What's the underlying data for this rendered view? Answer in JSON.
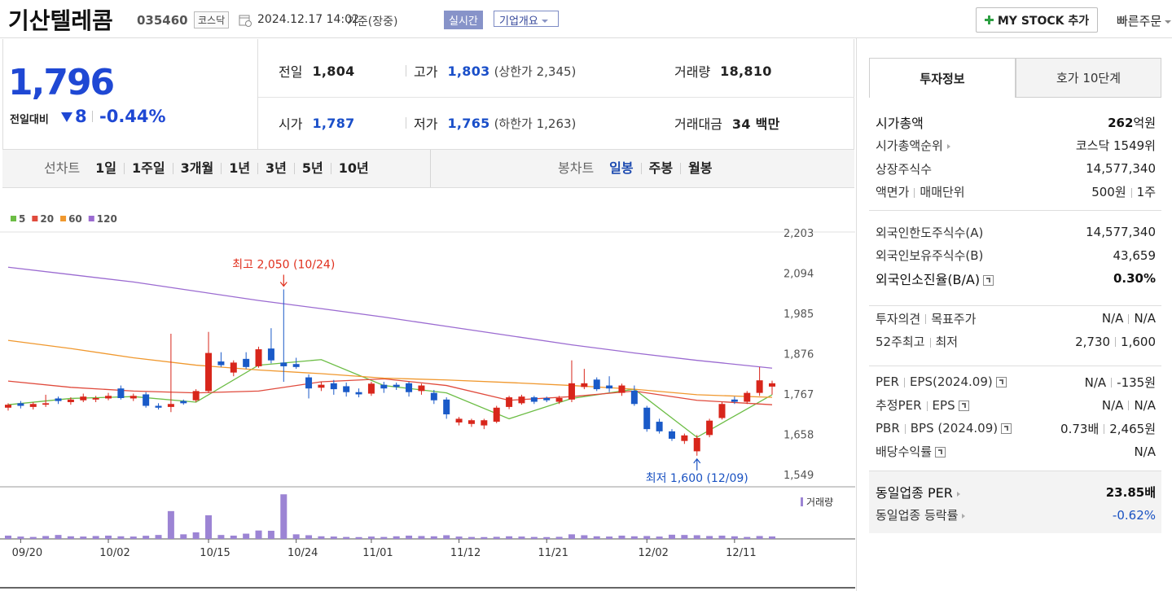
{
  "header": {
    "name": "기산텔레콤",
    "code": "035460",
    "market": "코스닥",
    "datetime": "2024.12.17 14:02",
    "basis": "기준(장중)",
    "realtime": "실시간",
    "overview": "기업개요",
    "mystock": "MY STOCK 추가",
    "quick_order": "빠른주문"
  },
  "quote": {
    "price": "1,796",
    "change_label": "전일대비",
    "change": "8",
    "change_rate": "-0.44%",
    "cells": [
      {
        "label": "전일",
        "value": "1,804"
      },
      {
        "label": "고가",
        "value": "1,803",
        "note": "(상한가 2,345)",
        "color": "#1a4fc9"
      },
      {
        "label": "거래량",
        "value": "18,810"
      },
      {
        "label": "시가",
        "value": "1,787",
        "color": "#1a4fc9"
      },
      {
        "label": "저가",
        "value": "1,765",
        "note": "(하한가 1,263)",
        "color": "#1a4fc9"
      },
      {
        "label": "거래대금",
        "value": "34 백만"
      }
    ]
  },
  "period_tabs": {
    "line_label": "선차트",
    "line": [
      "1일",
      "1주일",
      "3개월",
      "1년",
      "3년",
      "5년",
      "10년"
    ],
    "candle_label": "봉차트",
    "candle": [
      "일봉",
      "주봉",
      "월봉"
    ],
    "active": 0
  },
  "chart_data": {
    "type": "candlestick",
    "categories": [
      null,
      "09/20",
      null,
      null,
      null,
      null,
      null,
      null,
      "10/02",
      null,
      null,
      null,
      null,
      null,
      null,
      null,
      "10/15",
      null,
      null,
      null,
      null,
      null,
      null,
      "10/24",
      null,
      null,
      null,
      null,
      null,
      "11/01",
      null,
      null,
      null,
      null,
      null,
      null,
      "11/12",
      null,
      null,
      null,
      null,
      null,
      null,
      "11/21",
      null,
      null,
      null,
      null,
      null,
      null,
      null,
      "12/02",
      null,
      null,
      null,
      null,
      null,
      null,
      "12/11",
      null,
      null,
      null
    ],
    "open": [
      1730,
      1742,
      1732,
      1738,
      1755,
      1745,
      1750,
      1752,
      1755,
      1782,
      1755,
      1766,
      1735,
      1732,
      1748,
      1750,
      1775,
      1855,
      1825,
      1862,
      1842,
      1890,
      1852,
      1848,
      1812,
      1784,
      1796,
      1788,
      1772,
      1768,
      1792,
      1792,
      1796,
      1775,
      1770,
      1752,
      1690,
      1686,
      1682,
      1692,
      1732,
      1742,
      1758,
      1756,
      1746,
      1752,
      1786,
      1806,
      1790,
      1770,
      1776,
      1730,
      1692,
      1666,
      1640,
      1612,
      1656,
      1702,
      1752,
      1746,
      1770,
      1787
    ],
    "high": [
      1742,
      1748,
      1745,
      1765,
      1760,
      1758,
      1768,
      1762,
      1770,
      1790,
      1768,
      1772,
      1742,
      1930,
      1752,
      1780,
      1935,
      1880,
      1858,
      1880,
      1895,
      1945,
      2050,
      1865,
      1820,
      1800,
      1805,
      1798,
      1782,
      1800,
      1800,
      1798,
      1800,
      1795,
      1778,
      1758,
      1705,
      1700,
      1700,
      1735,
      1762,
      1765,
      1762,
      1760,
      1762,
      1858,
      1835,
      1812,
      1815,
      1795,
      1790,
      1735,
      1700,
      1672,
      1660,
      1656,
      1700,
      1745,
      1760,
      1775,
      1840,
      1803
    ],
    "low": [
      1722,
      1728,
      1725,
      1732,
      1740,
      1738,
      1745,
      1745,
      1750,
      1752,
      1748,
      1730,
      1725,
      1718,
      1738,
      1745,
      1770,
      1840,
      1815,
      1835,
      1838,
      1850,
      1800,
      1835,
      1755,
      1775,
      1765,
      1760,
      1758,
      1762,
      1770,
      1778,
      1760,
      1765,
      1740,
      1700,
      1682,
      1678,
      1672,
      1688,
      1726,
      1738,
      1740,
      1745,
      1740,
      1745,
      1780,
      1775,
      1772,
      1762,
      1735,
      1665,
      1660,
      1640,
      1632,
      1600,
      1650,
      1698,
      1740,
      1740,
      1762,
      1765
    ],
    "close": [
      1738,
      1735,
      1740,
      1742,
      1748,
      1752,
      1760,
      1756,
      1762,
      1756,
      1762,
      1735,
      1730,
      1740,
      1742,
      1775,
      1878,
      1845,
      1852,
      1840,
      1888,
      1858,
      1842,
      1840,
      1782,
      1792,
      1780,
      1772,
      1766,
      1795,
      1782,
      1786,
      1772,
      1790,
      1750,
      1712,
      1700,
      1696,
      1696,
      1730,
      1758,
      1760,
      1746,
      1750,
      1756,
      1796,
      1796,
      1780,
      1782,
      1790,
      1740,
      1672,
      1666,
      1646,
      1655,
      1648,
      1695,
      1740,
      1746,
      1770,
      1804,
      1796
    ],
    "up_color": "#d8261b",
    "down_color": "#1a5ac8",
    "series": [
      {
        "name": "5",
        "color": "#6cbd45",
        "x": [
          0,
          5,
          10,
          15,
          20,
          25,
          30,
          35,
          40,
          45,
          50,
          55,
          61
        ],
        "values": [
          1738,
          1755,
          1760,
          1745,
          1845,
          1860,
          1790,
          1770,
          1700,
          1755,
          1780,
          1650,
          1765
        ]
      },
      {
        "name": "20",
        "color": "#e04a3c",
        "x": [
          0,
          5,
          10,
          15,
          20,
          25,
          30,
          35,
          40,
          45,
          50,
          55,
          61
        ],
        "values": [
          1802,
          1785,
          1775,
          1770,
          1775,
          1800,
          1808,
          1790,
          1750,
          1760,
          1775,
          1750,
          1738
        ]
      },
      {
        "name": "60",
        "color": "#f0982e",
        "x": [
          0,
          5,
          10,
          15,
          20,
          25,
          30,
          35,
          40,
          45,
          50,
          55,
          61
        ],
        "values": [
          1912,
          1890,
          1865,
          1845,
          1832,
          1822,
          1810,
          1805,
          1798,
          1790,
          1780,
          1765,
          1758
        ]
      },
      {
        "name": "120",
        "color": "#9b6bd1",
        "x": [
          0,
          5,
          10,
          15,
          20,
          25,
          30,
          35,
          40,
          45,
          50,
          55,
          61
        ],
        "values": [
          2110,
          2090,
          2070,
          2045,
          2020,
          1998,
          1975,
          1950,
          1925,
          1900,
          1878,
          1858,
          1837
        ]
      }
    ],
    "ylim": [
      1549,
      2203
    ],
    "yticks": [
      {
        "value": 2203,
        "label": "2,203"
      },
      {
        "value": 2094,
        "label": "2,094"
      },
      {
        "value": 1985,
        "label": "1,985"
      },
      {
        "value": 1876,
        "label": "1,876"
      },
      {
        "value": 1767,
        "label": "1,767"
      },
      {
        "value": 1658,
        "label": "1,658"
      },
      {
        "value": 1549,
        "label": "1,549"
      }
    ],
    "grid": false,
    "annotations": [
      {
        "kind": "high",
        "text": "최고 2,050 (10/24)",
        "color": "#e0301e"
      },
      {
        "kind": "low",
        "text": "최저 1,600 (12/09)",
        "color": "#1a52c2"
      }
    ],
    "volume_label": "거래량",
    "volume_color": "#9c84d4",
    "volume": [
      25000,
      18000,
      15000,
      22000,
      30000,
      20000,
      18000,
      22000,
      25000,
      20000,
      18000,
      24000,
      30000,
      212000,
      35000,
      50000,
      180000,
      30000,
      25000,
      40000,
      64000,
      62000,
      340000,
      35000,
      28000,
      20000,
      18000,
      15000,
      14000,
      18000,
      15000,
      20000,
      25000,
      22000,
      20000,
      28000,
      18000,
      15000,
      14000,
      16000,
      20000,
      18000,
      15000,
      14000,
      16000,
      35000,
      28000,
      20000,
      18000,
      25000,
      20000,
      22000,
      18000,
      32000,
      30000,
      28000,
      22000,
      25000,
      20000,
      15000,
      22000,
      18810
    ],
    "vlim": [
      0,
      360000
    ]
  },
  "info": {
    "tabs": [
      "투자정보",
      "호가 10단계"
    ],
    "sections": [
      [
        {
          "labels": [
            "시가총액"
          ],
          "values": [
            "262"
          ],
          "unit": "억원",
          "strong": true,
          "label_strong": true
        },
        {
          "labels": [
            "시가총액순위"
          ],
          "arrow": true,
          "values": [
            "코스닥 1549위"
          ]
        },
        {
          "labels": [
            "상장주식수"
          ],
          "values": [
            "14,577,340"
          ]
        },
        {
          "labels": [
            "액면가",
            "매매단위"
          ],
          "values": [
            "500원",
            "1주"
          ]
        }
      ],
      [
        {
          "labels": [
            "외국인한도주식수(A)"
          ],
          "values": [
            "14,577,340"
          ]
        },
        {
          "labels": [
            "외국인보유주식수(B)"
          ],
          "values": [
            "43,659"
          ]
        },
        {
          "labels": [
            "외국인소진율(B/A)"
          ],
          "help": true,
          "values": [
            "0.30%"
          ],
          "strong": true,
          "label_strong": true
        }
      ],
      [
        {
          "labels": [
            "투자의견",
            "목표주가"
          ],
          "values": [
            "N/A",
            "N/A"
          ]
        },
        {
          "labels": [
            "52주최고",
            "최저"
          ],
          "values": [
            "2,730",
            "1,600"
          ]
        }
      ],
      [
        {
          "labels": [
            "PER",
            "EPS(2024.09)"
          ],
          "help": true,
          "values": [
            "N/A",
            "-135원"
          ]
        },
        {
          "labels": [
            "추정PER",
            "EPS"
          ],
          "help": true,
          "values": [
            "N/A",
            "N/A"
          ]
        },
        {
          "labels": [
            "PBR",
            "BPS (2024.09)"
          ],
          "help": true,
          "values": [
            "0.73배",
            "2,465원"
          ]
        },
        {
          "labels": [
            "배당수익률"
          ],
          "help": true,
          "values": [
            "N/A"
          ]
        }
      ],
      [
        {
          "labels": [
            "동일업종 PER"
          ],
          "arrow": true,
          "values": [
            "23.85배"
          ],
          "strong": true,
          "label_strong": true
        },
        {
          "labels": [
            "동일업종 등락률"
          ],
          "arrow": true,
          "values": [
            "-0.62%"
          ],
          "color": "#1a52c2"
        }
      ]
    ]
  }
}
